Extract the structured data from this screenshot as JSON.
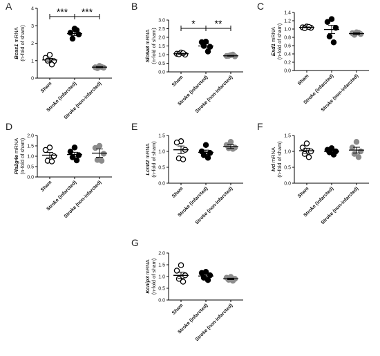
{
  "figure": {
    "categories": [
      "Sham",
      "Stroke (infarcted)",
      "Stroke (non-infarcted)"
    ],
    "category_styles": [
      "open",
      "filled",
      "grey"
    ]
  },
  "chart_data": [
    {
      "type": "scatter",
      "panel_letter": "A",
      "ylabel_gene": "Bcas1",
      "ylabel_suffix": " mRNA",
      "ylabel_line2": "(n-fold of sham)",
      "ylim": [
        0,
        4
      ],
      "yticks": [
        "0",
        "1",
        "2",
        "3",
        "4"
      ],
      "categories": [
        "Sham",
        "Stroke (infarcted)",
        "Stroke (non-infarcted)"
      ],
      "series": [
        {
          "points": [
            1.33,
            1.16,
            0.97,
            1.0,
            0.78
          ],
          "mean": 1.04,
          "sem": 0.09
        },
        {
          "points": [
            2.83,
            2.6,
            2.5,
            2.26,
            2.75
          ],
          "mean": 2.55,
          "sem": 0.11
        },
        {
          "points": [
            0.7,
            0.62,
            0.6,
            0.57,
            0.64
          ],
          "mean": 0.63,
          "sem": 0.03
        }
      ],
      "significance": [
        {
          "from": 0,
          "to": 1,
          "label": "***"
        },
        {
          "from": 1,
          "to": 2,
          "label": "***"
        }
      ]
    },
    {
      "type": "scatter",
      "panel_letter": "B",
      "ylabel_gene": "Slc6a8",
      "ylabel_suffix": " mRNA",
      "ylabel_line2": "(n-fold of sham)",
      "ylim": [
        0,
        3
      ],
      "yticks": [
        "0.0",
        "0.5",
        "1.0",
        "1.5",
        "2.0",
        "2.5",
        "3.0"
      ],
      "categories": [
        "Sham",
        "Stroke (infarcted)",
        "Stroke (non-infarcted)"
      ],
      "series": [
        {
          "points": [
            1.12,
            1.05,
            1.0,
            1.02,
            1.08
          ],
          "mean": 1.05,
          "sem": 0.03
        },
        {
          "points": [
            1.75,
            1.72,
            1.45,
            1.5,
            1.18
          ],
          "mean": 1.5,
          "sem": 0.12
        },
        {
          "points": [
            0.97,
            0.92,
            0.9,
            0.93,
            1.0
          ],
          "mean": 0.93,
          "sem": 0.02
        }
      ],
      "significance": [
        {
          "from": 0,
          "to": 1,
          "label": "*"
        },
        {
          "from": 1,
          "to": 2,
          "label": "**"
        }
      ]
    },
    {
      "type": "scatter",
      "panel_letter": "C",
      "ylabel_gene": "Exd1",
      "ylabel_suffix": " mRNA",
      "ylabel_line2": "(n-fold of sham)",
      "ylim": [
        0,
        1.4
      ],
      "yticks": [
        "0.0",
        "0.2",
        "0.4",
        "0.6",
        "0.8",
        "1.0",
        "1.2",
        "1.4"
      ],
      "categories": [
        "Sham",
        "Stroke (infarcted)",
        "Stroke (non-infarcted)"
      ],
      "series": [
        {
          "points": [
            1.06,
            1.04,
            1.03,
            1.02,
            1.05
          ],
          "mean": 1.04,
          "sem": 0.01
        },
        {
          "points": [
            1.24,
            1.17,
            1.03,
            0.82,
            0.68
          ],
          "mean": 0.99,
          "sem": 0.1
        },
        {
          "points": [
            0.92,
            0.9,
            0.88,
            0.86,
            0.91
          ],
          "mean": 0.89,
          "sem": 0.02
        }
      ],
      "significance": []
    },
    {
      "type": "scatter",
      "panel_letter": "D",
      "ylabel_gene": "Pla2g4e",
      "ylabel_suffix": " mRNA",
      "ylabel_line2": "(n-fold of sham)",
      "ylim": [
        0,
        2
      ],
      "yticks": [
        "0.0",
        "0.5",
        "1.0",
        "1.5",
        "2.0"
      ],
      "categories": [
        "Sham",
        "Stroke (infarcted)",
        "Stroke (non-infarcted)"
      ],
      "series": [
        {
          "points": [
            1.42,
            1.3,
            1.0,
            0.78,
            0.75
          ],
          "mean": 1.05,
          "sem": 0.13
        },
        {
          "points": [
            1.42,
            1.22,
            1.05,
            0.95,
            0.8
          ],
          "mean": 1.08,
          "sem": 0.11
        },
        {
          "points": [
            1.5,
            1.4,
            1.12,
            0.82,
            0.78
          ],
          "mean": 1.15,
          "sem": 0.2
        }
      ],
      "significance": []
    },
    {
      "type": "scatter",
      "panel_letter": "E",
      "ylabel_gene": "Lcmt2",
      "ylabel_suffix": " mRNA",
      "ylabel_line2": "(n-fold of sham)",
      "ylim": [
        0,
        1.5
      ],
      "yticks": [
        "0.0",
        "0.5",
        "1.0",
        "1.5"
      ],
      "categories": [
        "Sham",
        "Stroke (infarcted)",
        "Stroke (non-infarcted)"
      ],
      "series": [
        {
          "points": [
            1.32,
            1.28,
            1.05,
            0.78,
            0.75
          ],
          "mean": 1.05,
          "sem": 0.12
        },
        {
          "points": [
            1.2,
            1.0,
            0.95,
            0.88,
            0.8
          ],
          "mean": 0.97,
          "sem": 0.07
        },
        {
          "points": [
            1.3,
            1.2,
            1.12,
            1.1,
            1.08
          ],
          "mean": 1.15,
          "sem": 0.06
        }
      ],
      "significance": []
    },
    {
      "type": "scatter",
      "panel_letter": "F",
      "ylabel_gene": "Ivd",
      "ylabel_suffix": " mRNA",
      "ylabel_line2": "(n-fold of sham)",
      "ylim": [
        0,
        1.5
      ],
      "yticks": [
        "0.0",
        "0.5",
        "1.0",
        "1.5"
      ],
      "categories": [
        "Sham",
        "Stroke (infarcted)",
        "Stroke (non-infarcted)"
      ],
      "series": [
        {
          "points": [
            1.25,
            1.12,
            1.0,
            0.92,
            0.82
          ],
          "mean": 1.02,
          "sem": 0.08
        },
        {
          "points": [
            1.1,
            1.05,
            1.0,
            0.97,
            0.9
          ],
          "mean": 1.0,
          "sem": 0.04
        },
        {
          "points": [
            1.3,
            1.12,
            1.0,
            0.92,
            0.82
          ],
          "mean": 1.04,
          "sem": 0.09
        }
      ],
      "significance": []
    },
    {
      "type": "scatter",
      "panel_letter": "G",
      "ylabel_gene": "Kcnip3",
      "ylabel_suffix": " mRNA",
      "ylabel_line2": "(n-fold of sham)",
      "ylim": [
        0,
        2
      ],
      "yticks": [
        "0.0",
        "0.5",
        "1.0",
        "1.5",
        "2.0"
      ],
      "categories": [
        "Sham",
        "Stroke (infarcted)",
        "Stroke (non-infarcted)"
      ],
      "series": [
        {
          "points": [
            1.48,
            1.25,
            1.05,
            0.9,
            0.78
          ],
          "mean": 1.05,
          "sem": 0.13
        },
        {
          "points": [
            1.2,
            1.15,
            1.05,
            0.95,
            0.85
          ],
          "mean": 1.02,
          "sem": 0.07
        },
        {
          "points": [
            0.98,
            0.95,
            0.9,
            0.86,
            0.82
          ],
          "mean": 0.9,
          "sem": 0.03
        }
      ],
      "significance": []
    }
  ]
}
